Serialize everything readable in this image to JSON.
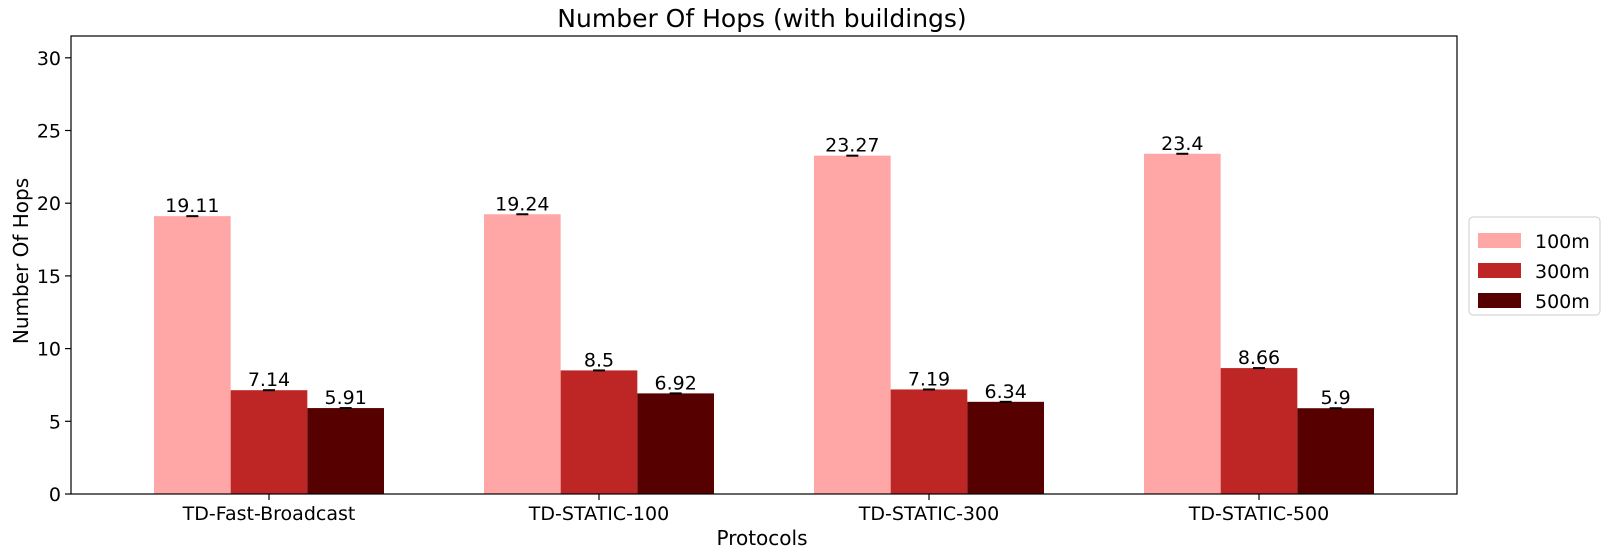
{
  "chart_data": {
    "type": "bar",
    "title": "Number Of Hops (with buildings)",
    "xlabel": "Protocols",
    "ylabel": "Number Of Hops",
    "categories": [
      "TD-Fast-Broadcast",
      "TD-STATIC-100",
      "TD-STATIC-300",
      "TD-STATIC-500"
    ],
    "series": [
      {
        "name": "100m",
        "color": "#ffa7a7",
        "values": [
          19.11,
          19.24,
          23.27,
          23.4
        ],
        "labels": [
          "19.11",
          "19.24",
          "23.27",
          "23.4"
        ]
      },
      {
        "name": "300m",
        "color": "#be2525",
        "values": [
          7.14,
          8.5,
          7.19,
          8.66
        ],
        "labels": [
          "7.14",
          "8.5",
          "7.19",
          "8.66"
        ]
      },
      {
        "name": "500m",
        "color": "#560000",
        "values": [
          5.91,
          6.92,
          6.34,
          5.9
        ],
        "labels": [
          "5.91",
          "6.92",
          "6.34",
          "5.9"
        ]
      }
    ],
    "ylim": [
      0,
      31.5
    ],
    "yticks": [
      0,
      5,
      10,
      15,
      20,
      25,
      30
    ],
    "error_bars": true,
    "grid": false,
    "legend_position": "center-right, outside plot"
  }
}
